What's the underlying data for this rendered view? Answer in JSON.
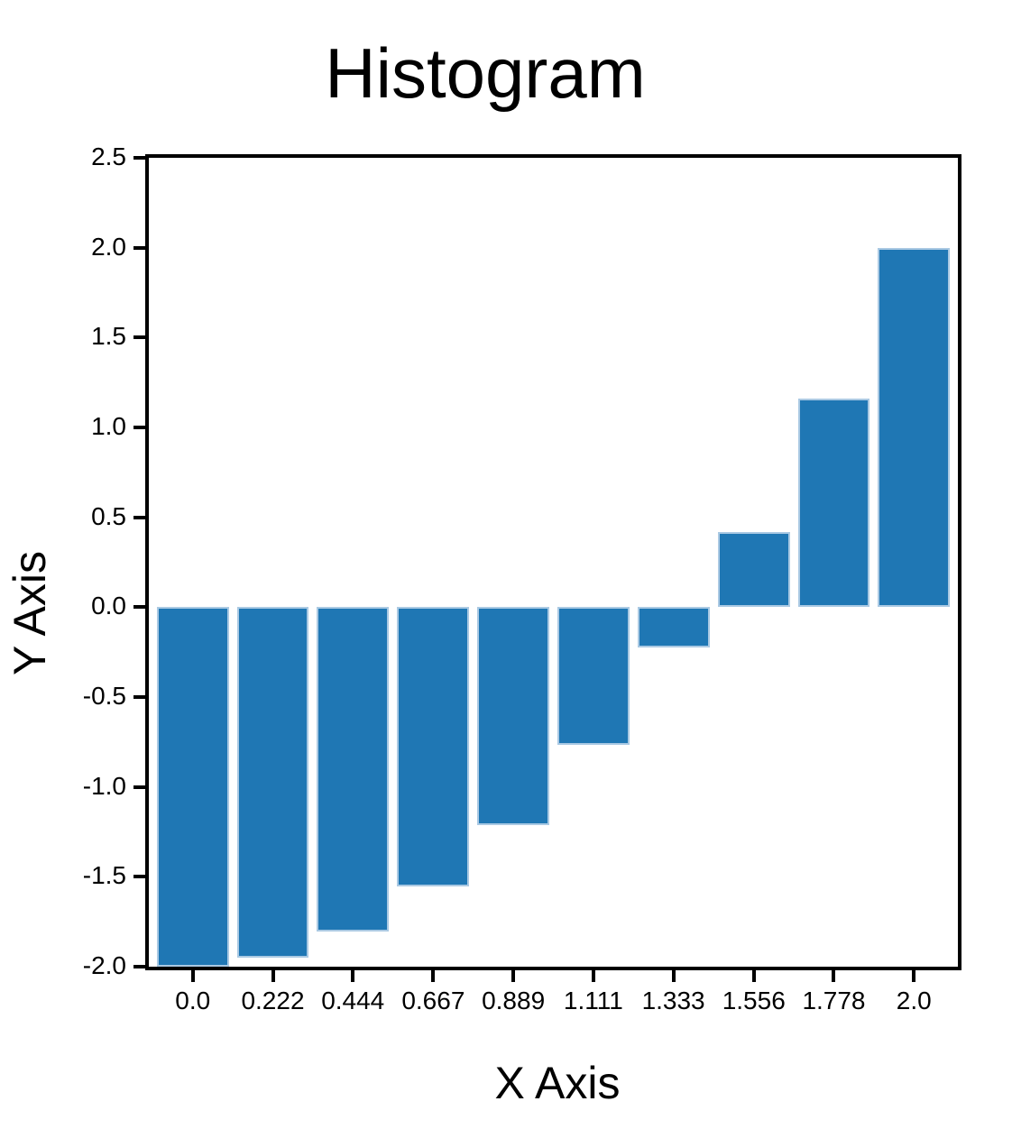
{
  "colors": {
    "bar_fill": "#1f77b4",
    "bar_edge": "#aac9e3",
    "axis": "#000000",
    "text": "#000000",
    "background": "#ffffff"
  },
  "chart_data": {
    "type": "bar",
    "title": "Histogram",
    "xlabel": "X Axis",
    "ylabel": "Y Axis",
    "x": [
      0.0,
      0.222,
      0.444,
      0.667,
      0.889,
      1.111,
      1.333,
      1.556,
      1.778,
      2.0
    ],
    "values": [
      -2.0,
      -1.951,
      -1.803,
      -1.556,
      -1.21,
      -0.765,
      -0.222,
      0.42,
      1.161,
      2.0
    ],
    "x_tick_labels": [
      "0.0",
      "0.222",
      "0.444",
      "0.667",
      "0.889",
      "1.111",
      "1.333",
      "1.556",
      "1.778",
      "2.0"
    ],
    "y_ticks": [
      2.5,
      2.0,
      1.5,
      1.0,
      0.5,
      0.0,
      -0.5,
      -1.0,
      -1.5,
      -2.0
    ],
    "y_tick_labels": [
      "2.5",
      "2.0",
      "1.5",
      "1.0",
      "0.5",
      "0.0",
      "-0.5",
      "-1.0",
      "-1.5",
      "-2.0"
    ],
    "xlim": [
      -0.122,
      2.122
    ],
    "ylim": [
      -2.0,
      2.5
    ],
    "bar_width": 0.2,
    "grid": false,
    "legend": null
  }
}
